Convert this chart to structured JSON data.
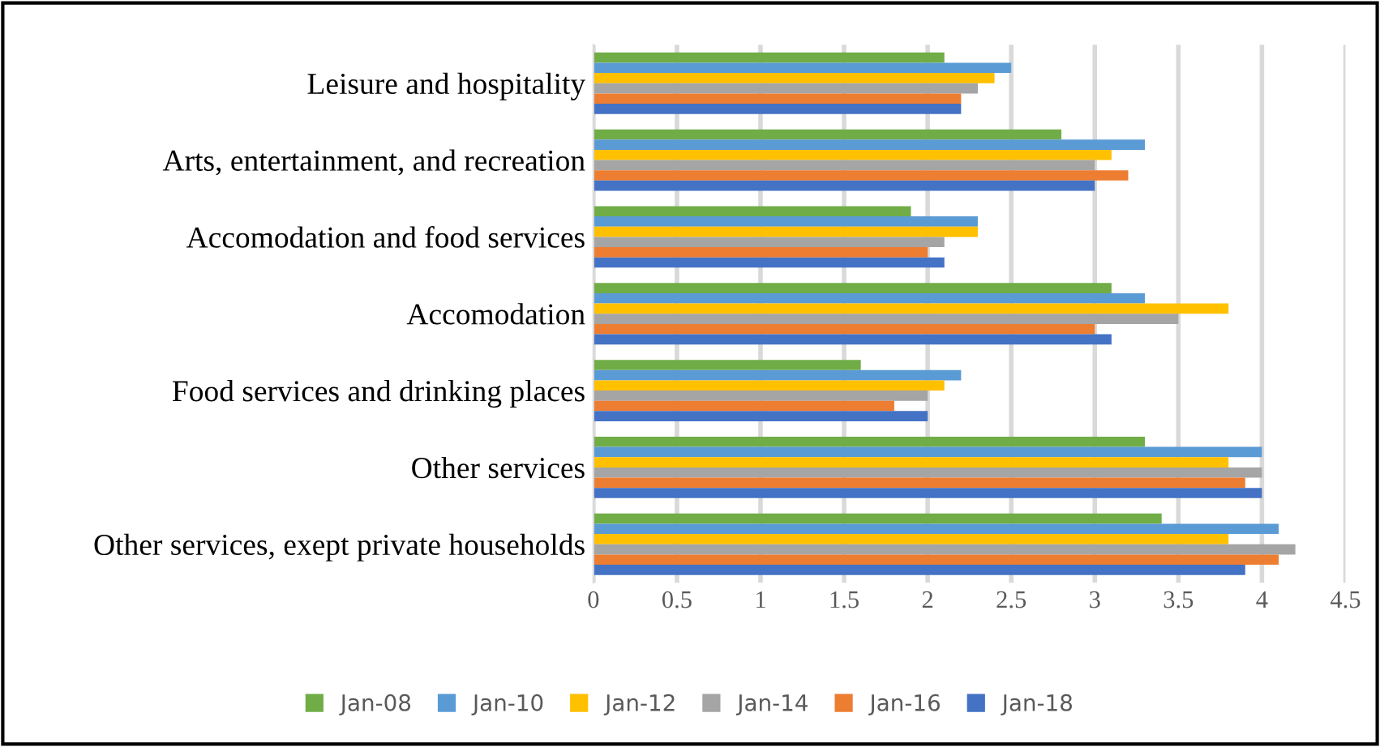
{
  "chart_data": {
    "type": "bar",
    "orientation": "horizontal",
    "categories": [
      "Leisure and hospitality",
      "Arts, entertainment, and recreation",
      "Accomodation and food services",
      "Accomodation",
      "Food services and drinking places",
      "Other services",
      "Other services, exept private households"
    ],
    "series": [
      {
        "name": "Jan-08",
        "color": "#70ad47",
        "values": [
          2.1,
          2.8,
          1.9,
          3.1,
          1.6,
          3.3,
          3.4
        ]
      },
      {
        "name": "Jan-10",
        "color": "#5b9bd5",
        "values": [
          2.5,
          3.3,
          2.3,
          3.3,
          2.2,
          4.0,
          4.1
        ]
      },
      {
        "name": "Jan-12",
        "color": "#ffc000",
        "values": [
          2.4,
          3.1,
          2.3,
          3.8,
          2.1,
          3.8,
          3.8
        ]
      },
      {
        "name": "Jan-14",
        "color": "#a5a5a5",
        "values": [
          2.3,
          3.0,
          2.1,
          3.5,
          2.0,
          4.0,
          4.2
        ]
      },
      {
        "name": "Jan-16",
        "color": "#ed7d31",
        "values": [
          2.2,
          3.2,
          2.0,
          3.0,
          1.8,
          3.9,
          4.1
        ]
      },
      {
        "name": "Jan-18",
        "color": "#4472c4",
        "values": [
          2.2,
          3.0,
          2.1,
          3.1,
          2.0,
          4.0,
          3.9
        ]
      }
    ],
    "xlim": [
      0,
      4.5
    ],
    "xticks": [
      0,
      0.5,
      1,
      1.5,
      2,
      2.5,
      3,
      3.5,
      4,
      4.5
    ],
    "grid": "x",
    "legend": "bottom"
  }
}
